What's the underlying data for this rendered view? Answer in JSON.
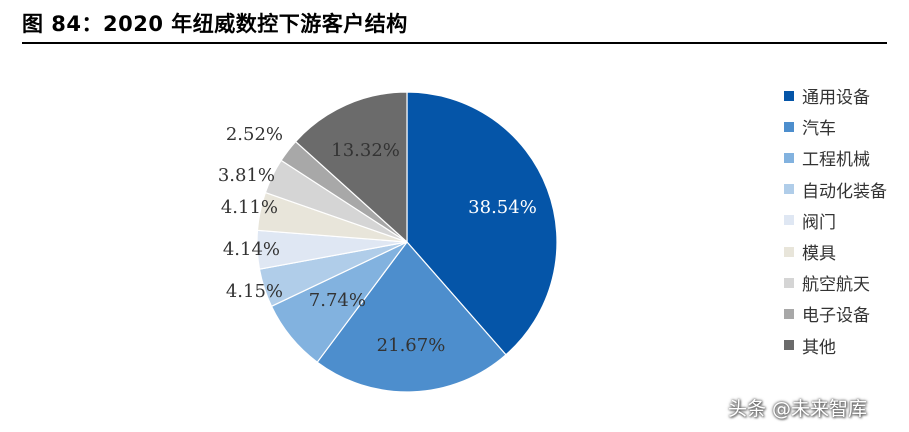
{
  "chart_data": {
    "type": "pie",
    "title": "图 84：2020 年纽威数控下游客户结构",
    "unit": "%",
    "categories": [
      "通用设备",
      "汽车",
      "工程机械",
      "自动化装备",
      "阀门",
      "模具",
      "航空航天",
      "电子设备",
      "其他"
    ],
    "values": [
      38.54,
      21.67,
      7.74,
      4.15,
      4.14,
      4.11,
      3.81,
      2.52,
      13.32
    ],
    "labels": [
      "38.54%",
      "21.67%",
      "7.74%",
      "4.15%",
      "4.14%",
      "4.11%",
      "3.81%",
      "2.52%",
      "13.32%"
    ],
    "colors": [
      "#0555a8",
      "#4d8ecd",
      "#82b2df",
      "#b0cde9",
      "#dfe7f3",
      "#e8e5da",
      "#d5d5d5",
      "#a8a8a8",
      "#6b6b6b"
    ],
    "legend_position": "right",
    "start_angle": "12 o'clock",
    "direction": "clockwise"
  },
  "watermark": "头条 @未来智库"
}
